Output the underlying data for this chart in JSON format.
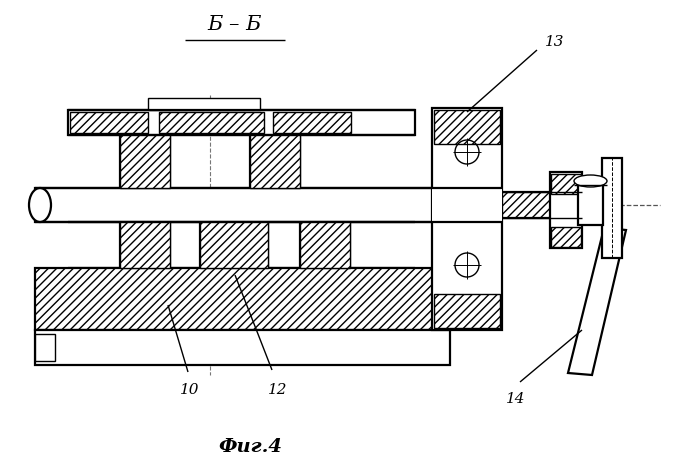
{
  "title": "Б – Б",
  "fig_label": "Фиг.4",
  "bg_color": "#ffffff",
  "line_color": "#000000",
  "lw": 1.0,
  "lw2": 1.6
}
